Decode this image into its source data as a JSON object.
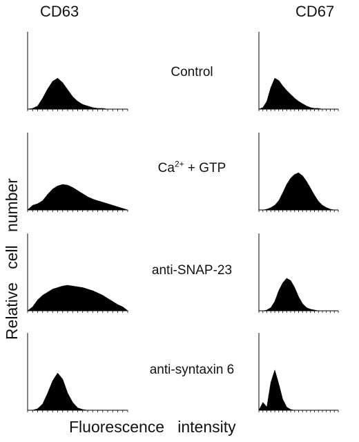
{
  "figure": {
    "column_titles": [
      "CD63",
      "CD67"
    ],
    "conditions": [
      "Control",
      "anti-SNAP-23",
      "anti-syntaxin 6"
    ],
    "condition_ca": {
      "base": "Ca",
      "sup": "2+",
      "rest": " + GTP"
    },
    "ylabel": "Relative   cell   number",
    "xlabel": "Fluorescence   intensity"
  },
  "chart_data": [
    {
      "type": "area",
      "title": "CD63",
      "xlabel": "Fluorescence intensity",
      "ylabel": "Relative cell number",
      "xlim": [
        0,
        100
      ],
      "ylim": [
        0,
        100
      ],
      "series": [
        {
          "row": "Control",
          "x": [
            0,
            5,
            10,
            15,
            20,
            25,
            30,
            35,
            40,
            45,
            50,
            55,
            60,
            65,
            70,
            75,
            80,
            85,
            90,
            95,
            100
          ],
          "y": [
            0,
            1,
            4,
            14,
            26,
            36,
            40,
            34,
            25,
            16,
            10,
            6,
            4,
            2,
            1,
            1,
            0,
            0,
            0,
            0,
            0
          ]
        },
        {
          "row": "Ca2+ + GTP",
          "x": [
            0,
            5,
            10,
            15,
            20,
            25,
            30,
            35,
            40,
            45,
            50,
            55,
            60,
            65,
            70,
            75,
            80,
            85,
            90,
            95,
            100
          ],
          "y": [
            0,
            6,
            8,
            12,
            20,
            27,
            31,
            33,
            32,
            29,
            25,
            21,
            17,
            14,
            12,
            10,
            8,
            6,
            4,
            2,
            0
          ]
        },
        {
          "row": "anti-SNAP-23",
          "x": [
            0,
            5,
            10,
            15,
            20,
            25,
            30,
            35,
            40,
            45,
            50,
            55,
            60,
            65,
            70,
            75,
            80,
            85,
            90,
            95,
            100
          ],
          "y": [
            0,
            5,
            14,
            20,
            24,
            28,
            30,
            32,
            33,
            32,
            31,
            30,
            28,
            26,
            23,
            20,
            16,
            12,
            8,
            5,
            0
          ]
        },
        {
          "row": "anti-syntaxin 6",
          "x": [
            0,
            5,
            10,
            15,
            20,
            25,
            30,
            35,
            40,
            45,
            50,
            55,
            60,
            65,
            70,
            75,
            80,
            85,
            90,
            95,
            100
          ],
          "y": [
            0,
            0,
            2,
            8,
            22,
            38,
            48,
            40,
            22,
            10,
            3,
            1,
            0,
            0,
            0,
            0,
            0,
            0,
            0,
            0,
            0
          ]
        }
      ]
    },
    {
      "type": "area",
      "title": "CD67",
      "xlabel": "Fluorescence intensity",
      "ylabel": "Relative cell number",
      "xlim": [
        0,
        100
      ],
      "ylim": [
        0,
        100
      ],
      "series": [
        {
          "row": "Control",
          "x": [
            0,
            5,
            10,
            15,
            20,
            25,
            30,
            35,
            40,
            45,
            50,
            55,
            60,
            65,
            70,
            75,
            80,
            85,
            90,
            95,
            100
          ],
          "y": [
            0,
            2,
            10,
            28,
            40,
            37,
            30,
            24,
            19,
            14,
            10,
            7,
            4,
            2,
            1,
            1,
            0,
            0,
            0,
            0,
            0
          ]
        },
        {
          "row": "Ca2+ + GTP",
          "x": [
            0,
            5,
            10,
            15,
            20,
            25,
            30,
            35,
            40,
            45,
            50,
            55,
            60,
            65,
            70,
            75,
            80,
            85,
            90,
            95,
            100
          ],
          "y": [
            0,
            0,
            1,
            3,
            6,
            12,
            22,
            33,
            41,
            46,
            48,
            44,
            37,
            28,
            19,
            11,
            6,
            3,
            1,
            0,
            0
          ]
        },
        {
          "row": "anti-SNAP-23",
          "x": [
            0,
            5,
            10,
            15,
            20,
            25,
            30,
            35,
            40,
            45,
            50,
            55,
            60,
            65,
            70,
            75,
            80,
            85,
            90,
            95,
            100
          ],
          "y": [
            0,
            0,
            1,
            4,
            12,
            26,
            36,
            42,
            39,
            30,
            18,
            9,
            4,
            2,
            1,
            0,
            0,
            0,
            0,
            0,
            0
          ]
        },
        {
          "row": "anti-syntaxin 6",
          "x": [
            0,
            5,
            10,
            15,
            20,
            25,
            30,
            35,
            40,
            45,
            50,
            55,
            60,
            65,
            70,
            75,
            80,
            85,
            90,
            95,
            100
          ],
          "y": [
            0,
            10,
            4,
            36,
            52,
            34,
            14,
            4,
            1,
            0,
            0,
            0,
            0,
            0,
            0,
            0,
            0,
            0,
            0,
            0,
            0
          ]
        }
      ]
    }
  ]
}
